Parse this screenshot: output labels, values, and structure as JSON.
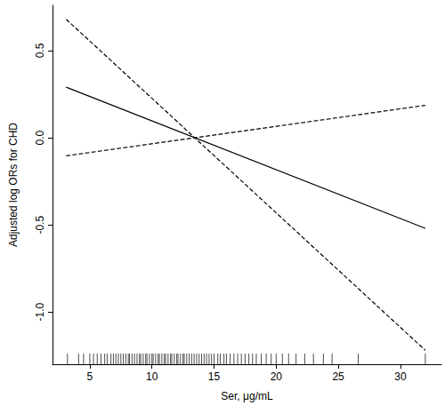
{
  "chart_data": {
    "type": "line",
    "x_label": "Ser, μg/mL",
    "y_label": "Adjusted log ORs for CHD",
    "x": [
      3.1,
      32
    ],
    "series": [
      {
        "color": "#000000",
        "line_style": "solid",
        "values": [
          0.29,
          -0.52
        ]
      },
      {
        "color": "#000000",
        "line_style": "dashed",
        "values": [
          0.68,
          -1.22
        ]
      },
      {
        "color": "#000000",
        "line_style": "dashed",
        "values": [
          -0.104,
          0.186
        ]
      }
    ],
    "rug": [
      3.2,
      4.1,
      4.5,
      5.0,
      5.3,
      5.6,
      5.9,
      6.2,
      6.4,
      6.7,
      6.9,
      7.1,
      7.3,
      7.5,
      7.7,
      7.9,
      8.1,
      8.2,
      8.4,
      8.6,
      8.8,
      9.0,
      9.1,
      9.3,
      9.5,
      9.6,
      9.8,
      10.0,
      10.1,
      10.3,
      10.5,
      10.6,
      10.8,
      11.0,
      11.1,
      11.3,
      11.5,
      11.6,
      11.8,
      12.0,
      12.1,
      12.3,
      12.5,
      12.6,
      12.8,
      13.0,
      13.2,
      13.4,
      13.6,
      13.8,
      14.0,
      14.2,
      14.4,
      14.6,
      14.8,
      15.0,
      15.3,
      15.5,
      15.8,
      16.0,
      16.3,
      16.6,
      16.9,
      17.2,
      17.5,
      17.8,
      18.1,
      18.4,
      18.8,
      19.2,
      19.6,
      20.0,
      20.5,
      21.0,
      21.6,
      22.3,
      23.0,
      23.8,
      24.5,
      26.6,
      32.0
    ],
    "xlim": [
      2,
      33.3
    ],
    "xticks": [
      5,
      10,
      15,
      20,
      25,
      30
    ],
    "ylim": [
      -1.3,
      0.76
    ],
    "yticks": [
      {
        "value": -1,
        "label": "-1.0"
      },
      {
        "value": -0.5,
        "label": "-0.5"
      },
      {
        "value": 0,
        "label": "0.0"
      },
      {
        "value": 0.5,
        "label": "0.5"
      }
    ],
    "grid": false
  }
}
